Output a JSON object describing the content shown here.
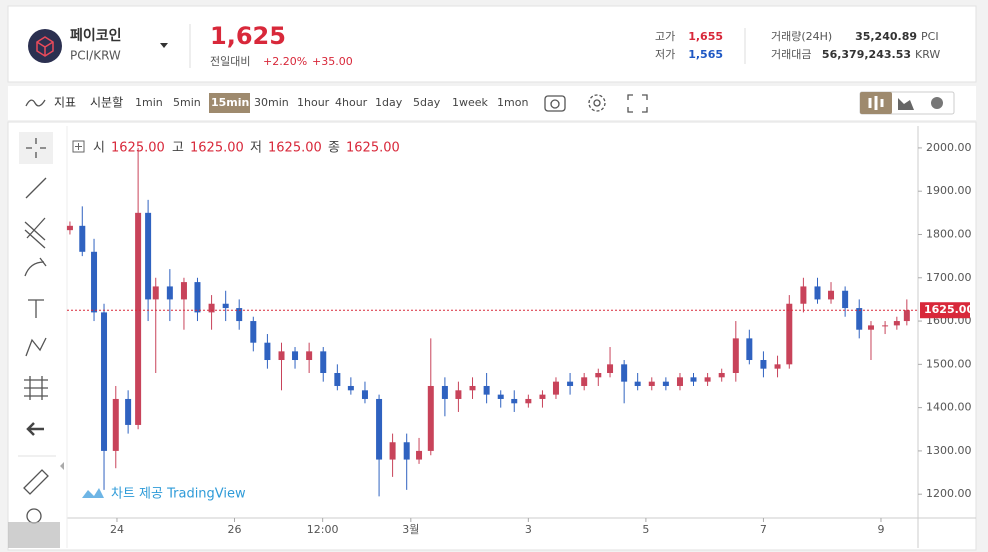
{
  "header": {
    "name": "페이코인",
    "pair": "PCI/KRW",
    "price": "1,625",
    "change_label": "전일대비",
    "change_pct": "+2.20%",
    "change_abs": "+35.00",
    "stats": [
      {
        "label": "고가",
        "value": "1,655",
        "color": "#d8283a"
      },
      {
        "label": "저가",
        "value": "1,565",
        "color": "#1f58c4"
      }
    ],
    "volume": [
      {
        "label": "거래량(24H)",
        "value": "35,240.89",
        "unit": "PCI"
      },
      {
        "label": "거래대금",
        "value": "56,379,243.53",
        "unit": "KRW"
      }
    ]
  },
  "toolbar": {
    "indicator": "지표",
    "timeshare": "시분할",
    "intervals": [
      "1min",
      "5min",
      "15min",
      "30min",
      "1hour",
      "4hour",
      "1day",
      "5day",
      "1week",
      "1mon"
    ],
    "active": "15min"
  },
  "chart_data": {
    "type": "candlestick",
    "up_color": "#c8435a",
    "down_color": "#2f62c0",
    "ohlc_legend": [
      {
        "label": "시",
        "value": "1625.00"
      },
      {
        "label": "고",
        "value": "1625.00"
      },
      {
        "label": "저",
        "value": "1625.00"
      },
      {
        "label": "종",
        "value": "1625.00"
      }
    ],
    "watermark": "차트 제공 TradingView",
    "price_line": {
      "value": 1625,
      "label": "1625.00",
      "color": "#d8283a"
    },
    "xlim": [
      23.15,
      37.63
    ],
    "xticks": [
      {
        "value": 24,
        "label": "24"
      },
      {
        "value": 26,
        "label": "26"
      },
      {
        "value": 27.5,
        "label": "12:00"
      },
      {
        "value": 29,
        "label": "3월"
      },
      {
        "value": 31,
        "label": "3"
      },
      {
        "value": 33,
        "label": "5"
      },
      {
        "value": 35,
        "label": "7"
      },
      {
        "value": 37,
        "label": "9"
      }
    ],
    "ylim": [
      1145,
      2046
    ],
    "yticks": [
      {
        "value": 1200,
        "label": "1200.00"
      },
      {
        "value": 1300,
        "label": "1300.00"
      },
      {
        "value": 1400,
        "label": "1400.00"
      },
      {
        "value": 1500,
        "label": "1500.00"
      },
      {
        "value": 1600,
        "label": "1600.00"
      },
      {
        "value": 1700,
        "label": "1700.00"
      },
      {
        "value": 1800,
        "label": "1800.00"
      },
      {
        "value": 1900,
        "label": "1900.00"
      },
      {
        "value": 2000,
        "label": "2000.00"
      }
    ],
    "x": [
      23.2,
      23.41,
      23.61,
      23.78,
      23.98,
      24.19,
      24.36,
      24.53,
      24.66,
      24.9,
      25.14,
      25.37,
      25.61,
      25.85,
      26.08,
      26.32,
      26.56,
      26.8,
      27.03,
      27.27,
      27.51,
      27.75,
      27.98,
      28.22,
      28.46,
      28.69,
      28.93,
      29.14,
      29.34,
      29.58,
      29.81,
      30.05,
      30.29,
      30.53,
      30.76,
      31.0,
      31.24,
      31.47,
      31.71,
      31.95,
      32.19,
      32.39,
      32.63,
      32.86,
      33.1,
      33.34,
      33.58,
      33.81,
      34.05,
      34.29,
      34.53,
      34.76,
      35.0,
      35.24,
      35.44,
      35.68,
      35.92,
      36.15,
      36.39,
      36.63,
      36.83,
      37.07,
      37.27,
      37.44
    ],
    "open": [
      1810,
      1820,
      1760,
      1620,
      1300,
      1420,
      1360,
      1850,
      1650,
      1680,
      1650,
      1690,
      1620,
      1640,
      1630,
      1600,
      1550,
      1510,
      1530,
      1510,
      1530,
      1480,
      1450,
      1440,
      1420,
      1280,
      1320,
      1280,
      1300,
      1450,
      1420,
      1440,
      1450,
      1430,
      1420,
      1410,
      1420,
      1430,
      1460,
      1450,
      1470,
      1480,
      1500,
      1460,
      1450,
      1460,
      1450,
      1470,
      1460,
      1470,
      1480,
      1560,
      1510,
      1490,
      1500,
      1640,
      1680,
      1650,
      1670,
      1630,
      1580,
      1590,
      1590,
      1600
    ],
    "high": [
      1830,
      1865,
      1790,
      1640,
      1450,
      1440,
      2000,
      1880,
      1700,
      1720,
      1700,
      1700,
      1660,
      1670,
      1650,
      1610,
      1570,
      1550,
      1540,
      1550,
      1540,
      1500,
      1470,
      1460,
      1430,
      1340,
      1340,
      1330,
      1560,
      1470,
      1460,
      1470,
      1480,
      1440,
      1440,
      1430,
      1440,
      1470,
      1480,
      1480,
      1490,
      1540,
      1510,
      1480,
      1470,
      1470,
      1480,
      1480,
      1480,
      1490,
      1600,
      1580,
      1530,
      1520,
      1660,
      1700,
      1700,
      1690,
      1680,
      1650,
      1600,
      1600,
      1610,
      1650
    ],
    "low": [
      1800,
      1750,
      1600,
      1210,
      1260,
      1340,
      1350,
      1600,
      1480,
      1600,
      1580,
      1600,
      1580,
      1600,
      1580,
      1530,
      1490,
      1440,
      1490,
      1480,
      1460,
      1440,
      1430,
      1410,
      1195,
      1240,
      1210,
      1270,
      1290,
      1380,
      1390,
      1420,
      1410,
      1400,
      1390,
      1400,
      1400,
      1420,
      1430,
      1440,
      1450,
      1470,
      1410,
      1440,
      1440,
      1440,
      1440,
      1450,
      1450,
      1460,
      1460,
      1500,
      1470,
      1470,
      1490,
      1620,
      1640,
      1640,
      1610,
      1560,
      1510,
      1570,
      1580,
      1590
    ],
    "close": [
      1820,
      1760,
      1620,
      1300,
      1420,
      1360,
      1850,
      1650,
      1680,
      1650,
      1690,
      1620,
      1640,
      1630,
      1600,
      1550,
      1510,
      1530,
      1510,
      1530,
      1480,
      1450,
      1440,
      1420,
      1280,
      1320,
      1280,
      1300,
      1450,
      1420,
      1440,
      1450,
      1430,
      1420,
      1410,
      1420,
      1430,
      1460,
      1450,
      1470,
      1480,
      1500,
      1460,
      1450,
      1460,
      1450,
      1470,
      1460,
      1470,
      1480,
      1560,
      1510,
      1490,
      1500,
      1640,
      1680,
      1650,
      1670,
      1630,
      1580,
      1590,
      1590,
      1600,
      1625
    ]
  }
}
